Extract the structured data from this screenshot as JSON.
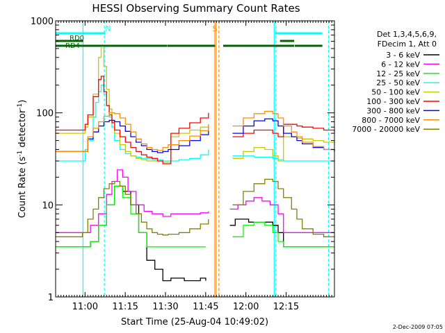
{
  "chart_data": {
    "type": "line",
    "title": "HESSI Observing Summary Count Rates",
    "xlabel": "Start Time (25-Aug-04 10:49:02)",
    "ylabel_main": "Count Rate (s",
    "ylabel_sup1": "-1",
    "ylabel_mid": " detector",
    "ylabel_sup2": "-1",
    "ylabel_end": ")",
    "y_scale": "log",
    "ylim": [
      1,
      1000
    ],
    "x_unit": "minutes since 10:49:02",
    "xlim": [
      0,
      104
    ],
    "x_ticks": [
      {
        "label": "11:00",
        "value": 10.97
      },
      {
        "label": "11:15",
        "value": 25.97
      },
      {
        "label": "11:30",
        "value": 40.97
      },
      {
        "label": "11:45",
        "value": 55.97
      },
      {
        "label": "12:00",
        "value": 70.97
      },
      {
        "label": "12:15",
        "value": 85.97
      }
    ],
    "y_ticks": [
      {
        "label": "1",
        "value": 1
      },
      {
        "label": "10",
        "value": 10
      },
      {
        "label": "100",
        "value": 100
      },
      {
        "label": "1000",
        "value": 1000
      }
    ],
    "legend_header": [
      "Det 1,3,4,5,6,9,",
      "FDecim 1, Att 0"
    ],
    "legend_position": "right",
    "series": [
      {
        "name": "3 - 6 keV",
        "color": "#000000",
        "x": [
          0,
          8,
          10,
          13,
          16,
          19,
          22,
          25,
          28,
          31,
          34,
          37,
          40,
          42,
          43,
          48,
          50,
          52,
          54,
          56,
          58,
          60,
          62,
          63,
          65,
          67,
          69,
          72,
          75,
          78,
          81,
          83,
          85,
          88,
          90,
          92,
          96,
          100,
          104
        ],
        "y": [
          3.5,
          3.5,
          3.5,
          4,
          6,
          10,
          16,
          14,
          10,
          5,
          2.5,
          2,
          1.5,
          1.5,
          1.6,
          1.5,
          1.5,
          1.5,
          1.6,
          1.5,
          null,
          null,
          null,
          null,
          6,
          7,
          7,
          6.5,
          6.5,
          6.5,
          6,
          5,
          3.5,
          3.5,
          3.5,
          3.5,
          3.5,
          3.5,
          3.5
        ]
      },
      {
        "name": "6 - 12 keV",
        "color": "#ff00ff",
        "x": [
          0,
          8,
          10,
          13,
          16,
          19,
          21,
          23,
          25,
          27,
          30,
          33,
          36,
          40,
          42,
          43,
          46,
          50,
          54,
          57,
          58,
          60,
          62,
          63,
          65,
          68,
          71,
          74,
          77,
          80,
          83,
          85,
          88,
          90,
          92,
          96,
          100,
          104
        ],
        "y": [
          5,
          5,
          5,
          6,
          8,
          13,
          18,
          24,
          20,
          14,
          10,
          8.5,
          8,
          7.5,
          7.5,
          8,
          8,
          8,
          8.2,
          8.5,
          null,
          null,
          null,
          null,
          9,
          10,
          11,
          12,
          11,
          10,
          8,
          5,
          5,
          5,
          5,
          5,
          5,
          5
        ]
      },
      {
        "name": "12 - 25 keV",
        "color": "#00ff00",
        "x": [
          0,
          8,
          10,
          13,
          16,
          19,
          22,
          25,
          28,
          31,
          34,
          37,
          40,
          42,
          43,
          48,
          52,
          56,
          58,
          60,
          62,
          63,
          66,
          70,
          74,
          78,
          81,
          83,
          85,
          88,
          90,
          92,
          96,
          100,
          104
        ],
        "y": [
          3.5,
          3.5,
          3.5,
          4,
          6,
          10,
          16,
          12,
          8,
          5,
          3.5,
          3.5,
          3.5,
          3.5,
          3.5,
          3.5,
          3.5,
          3.5,
          null,
          null,
          null,
          null,
          4.5,
          6,
          6.5,
          6,
          5,
          4,
          3.5,
          3.5,
          3.5,
          3.5,
          3.5,
          3.5,
          3.5
        ]
      },
      {
        "name": "25 - 50 keV",
        "color": "#00ffff",
        "x": [
          0,
          4,
          8,
          10,
          11,
          12,
          14,
          15,
          16,
          17,
          18,
          19,
          20,
          21,
          22,
          24,
          26,
          28,
          30,
          32,
          34,
          36,
          38,
          40,
          42,
          43,
          46,
          50,
          54,
          57,
          58,
          60,
          62,
          63,
          66,
          70,
          74,
          78,
          81,
          83,
          85,
          88,
          90,
          92,
          96,
          100,
          104
        ],
        "y": [
          30,
          30,
          30,
          30,
          40,
          50,
          90,
          130,
          170,
          200,
          160,
          120,
          90,
          70,
          50,
          40,
          36,
          34,
          33,
          32,
          32,
          31,
          31,
          30,
          30,
          30,
          31,
          32,
          35,
          40,
          null,
          null,
          null,
          null,
          34,
          34,
          33,
          33,
          32,
          31,
          30,
          30,
          30,
          30,
          30,
          30,
          30
        ]
      },
      {
        "name": "50 - 100 keV",
        "color": "#c8c800",
        "x": [
          0,
          4,
          8,
          10,
          11,
          12,
          14,
          16,
          17,
          18,
          19,
          20,
          21,
          22,
          24,
          26,
          28,
          30,
          32,
          34,
          36,
          38,
          40,
          42,
          43,
          46,
          50,
          54,
          57,
          58,
          60,
          62,
          63,
          66,
          70,
          74,
          78,
          81,
          83,
          85,
          88,
          90,
          92,
          96,
          100,
          104
        ],
        "y": [
          60,
          60,
          60,
          60,
          70,
          90,
          160,
          400,
          520,
          320,
          180,
          110,
          80,
          60,
          45,
          38,
          34,
          32,
          31,
          30,
          30,
          30,
          29,
          29,
          55,
          60,
          65,
          70,
          75,
          null,
          null,
          null,
          null,
          32,
          38,
          42,
          40,
          34,
          30,
          55,
          55,
          53,
          52,
          50,
          48,
          45
        ]
      },
      {
        "name": "100 - 300 keV",
        "color": "#ff0000",
        "x": [
          0,
          4,
          8,
          10,
          11,
          12,
          14,
          16,
          17,
          18,
          19,
          20,
          21,
          22,
          24,
          26,
          28,
          30,
          32,
          34,
          36,
          38,
          40,
          42,
          43,
          46,
          50,
          54,
          57,
          58,
          60,
          62,
          63,
          66,
          70,
          74,
          78,
          81,
          83,
          85,
          88,
          90,
          92,
          96,
          100,
          104
        ],
        "y": [
          65,
          65,
          65,
          65,
          75,
          95,
          150,
          230,
          250,
          170,
          120,
          95,
          78,
          65,
          55,
          48,
          42,
          38,
          35,
          33,
          32,
          30,
          28,
          28,
          60,
          68,
          78,
          88,
          100,
          null,
          null,
          null,
          null,
          55,
          60,
          65,
          65,
          60,
          55,
          75,
          75,
          72,
          70,
          68,
          65,
          62
        ]
      },
      {
        "name": "300 - 800 keV",
        "color": "#0000ff",
        "x": [
          0,
          4,
          8,
          10,
          12,
          14,
          16,
          18,
          20,
          22,
          24,
          26,
          28,
          30,
          32,
          34,
          36,
          38,
          40,
          42,
          43,
          46,
          50,
          54,
          57,
          58,
          60,
          62,
          63,
          66,
          70,
          74,
          78,
          81,
          83,
          85,
          88,
          90,
          92,
          96,
          100,
          104
        ],
        "y": [
          38,
          38,
          38,
          38,
          52,
          62,
          72,
          80,
          83,
          80,
          72,
          63,
          55,
          48,
          44,
          40,
          38,
          37,
          38,
          40,
          40,
          44,
          50,
          58,
          70,
          null,
          null,
          null,
          null,
          60,
          72,
          82,
          86,
          82,
          72,
          60,
          55,
          50,
          46,
          42,
          40,
          38
        ]
      },
      {
        "name": "800 - 7000 keV",
        "color": "#ff8c00",
        "x": [
          0,
          4,
          8,
          10,
          12,
          14,
          16,
          18,
          20,
          22,
          24,
          26,
          28,
          30,
          32,
          34,
          36,
          38,
          40,
          42,
          43,
          46,
          50,
          54,
          57,
          58,
          60,
          62,
          63,
          66,
          70,
          74,
          78,
          81,
          83,
          85,
          88,
          90,
          92,
          96,
          100,
          104
        ],
        "y": [
          38,
          38,
          38,
          38,
          55,
          68,
          80,
          92,
          100,
          98,
          88,
          75,
          62,
          52,
          46,
          42,
          40,
          39,
          42,
          45,
          45,
          50,
          56,
          64,
          75,
          null,
          null,
          null,
          null,
          72,
          88,
          98,
          104,
          98,
          88,
          72,
          62,
          55,
          48,
          43,
          40,
          38
        ]
      },
      {
        "name": "7000 - 20000 keV",
        "color": "#808000",
        "x": [
          0,
          4,
          8,
          10,
          12,
          14,
          16,
          18,
          20,
          22,
          24,
          26,
          28,
          30,
          32,
          34,
          36,
          38,
          40,
          42,
          43,
          46,
          50,
          54,
          57,
          58,
          60,
          62,
          63,
          66,
          70,
          74,
          78,
          81,
          83,
          85,
          88,
          90,
          92,
          96,
          100,
          104
        ],
        "y": [
          4.5,
          4.5,
          4.5,
          5,
          7,
          9,
          12,
          15,
          17,
          18,
          16,
          13,
          10,
          8,
          6.5,
          5.5,
          5,
          4.8,
          4.7,
          4.8,
          4.8,
          5,
          5.5,
          6.2,
          7,
          null,
          null,
          null,
          null,
          10,
          14,
          17,
          19,
          18,
          15,
          12,
          9,
          7,
          5.5,
          4.8,
          4.5,
          4.5
        ]
      }
    ],
    "annotations": [
      {
        "label": "N",
        "color": "#00ffff",
        "x": 19.3
      },
      {
        "label": "S",
        "color": "#ff8c00",
        "x": 59.3
      }
    ],
    "vertical_lines": [
      {
        "x": 10.2,
        "color": "#00ffff",
        "style": "solid"
      },
      {
        "x": 18.2,
        "color": "#00ffff",
        "style": "dashed"
      },
      {
        "x": 59.4,
        "color": "#ff8c00",
        "style": "solid"
      },
      {
        "x": 59.9,
        "color": "#ff8c00",
        "style": "solid"
      },
      {
        "x": 60.9,
        "color": "#ff8c00",
        "style": "dashed"
      },
      {
        "x": 81.5,
        "color": "#00ffff",
        "style": "solid"
      },
      {
        "x": 82.2,
        "color": "#00ffff",
        "style": "dashed"
      },
      {
        "x": 101.8,
        "color": "#00ffff",
        "style": "dashed"
      }
    ],
    "state_bars": [
      {
        "label": "",
        "color": "#00ffff",
        "segments": [
          [
            0,
            18.5
          ],
          [
            82,
            99.5
          ]
        ]
      },
      {
        "label": "RD0",
        "color": "#006400",
        "segments": [
          [
            0,
            10.3
          ],
          [
            83.7,
            89
          ]
        ]
      },
      {
        "label": "RD4",
        "color": "#006400",
        "segments": [
          [
            0,
            41.5
          ],
          [
            41.6,
            59.5
          ],
          [
            62.5,
            89
          ],
          [
            89.2,
            99.5
          ]
        ]
      }
    ],
    "grid": false
  },
  "footer": {
    "timestamp": "2-Dec-2009 07:05"
  }
}
